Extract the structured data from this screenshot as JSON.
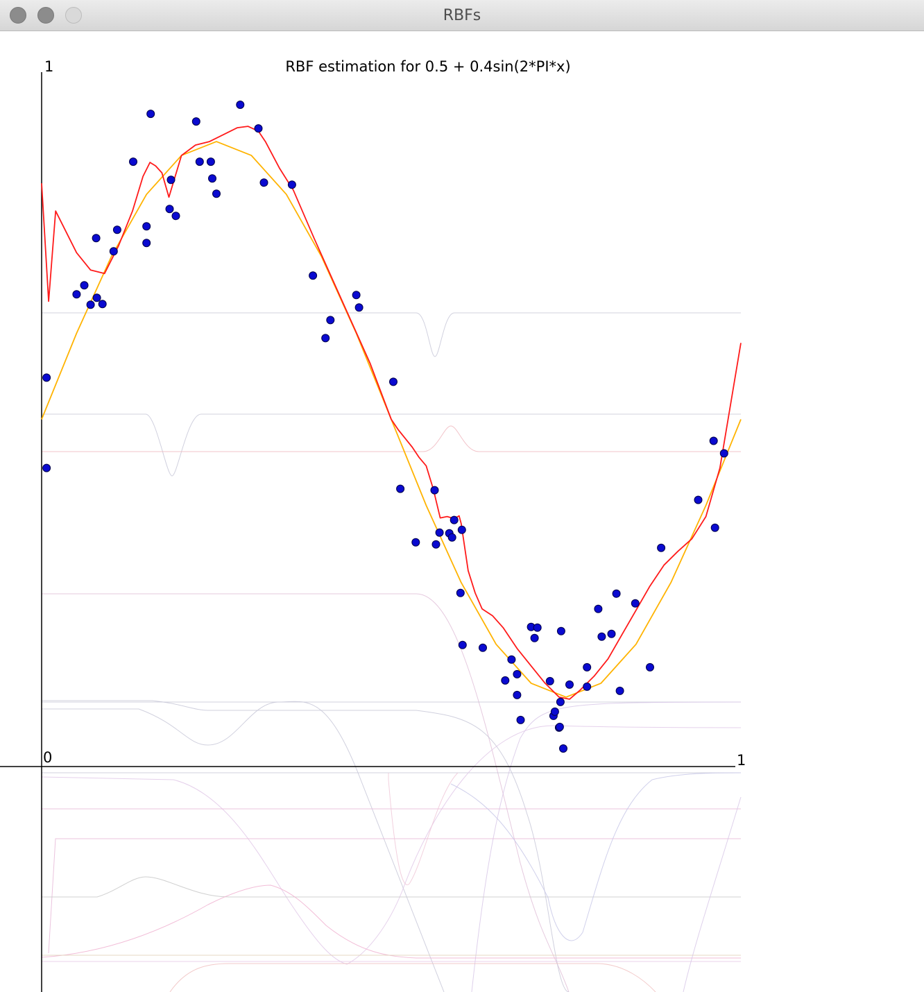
{
  "window": {
    "title": "RBFs"
  },
  "chart_data": {
    "type": "scatter",
    "title": "RBF estimation for 0.5 + 0.4sin(2*PI*x)",
    "xlim": [
      0,
      1
    ],
    "ylim": [
      0,
      1
    ],
    "tick_labels": {
      "y_top": "1",
      "origin": "0",
      "x_right": "1"
    },
    "colors": {
      "points": "#0a0ad0",
      "target": "#ffb300",
      "estimate": "#ff1a1a",
      "axes": "#000000"
    },
    "series": [
      {
        "kind": "points",
        "points": [
          [
            0.007,
            0.56
          ],
          [
            0.007,
            0.43
          ],
          [
            0.05,
            0.68
          ],
          [
            0.061,
            0.693
          ],
          [
            0.07,
            0.665
          ],
          [
            0.078,
            0.761
          ],
          [
            0.079,
            0.675
          ],
          [
            0.087,
            0.666
          ],
          [
            0.103,
            0.742
          ],
          [
            0.108,
            0.773
          ],
          [
            0.131,
            0.871
          ],
          [
            0.15,
            0.754
          ],
          [
            0.15,
            0.778
          ],
          [
            0.156,
            0.94
          ],
          [
            0.183,
            0.803
          ],
          [
            0.185,
            0.845
          ],
          [
            0.192,
            0.793
          ],
          [
            0.221,
            0.929
          ],
          [
            0.226,
            0.871
          ],
          [
            0.242,
            0.871
          ],
          [
            0.244,
            0.847
          ],
          [
            0.25,
            0.825
          ],
          [
            0.284,
            0.953
          ],
          [
            0.31,
            0.919
          ],
          [
            0.318,
            0.841
          ],
          [
            0.358,
            0.838
          ],
          [
            0.388,
            0.707
          ],
          [
            0.406,
            0.617
          ],
          [
            0.413,
            0.643
          ],
          [
            0.45,
            0.679
          ],
          [
            0.454,
            0.661
          ],
          [
            0.503,
            0.554
          ],
          [
            0.513,
            0.4
          ],
          [
            0.535,
            0.323
          ],
          [
            0.562,
            0.398
          ],
          [
            0.564,
            0.32
          ],
          [
            0.569,
            0.337
          ],
          [
            0.583,
            0.336
          ],
          [
            0.587,
            0.33
          ],
          [
            0.59,
            0.355
          ],
          [
            0.601,
            0.341
          ],
          [
            0.599,
            0.25
          ],
          [
            0.602,
            0.175
          ],
          [
            0.631,
            0.171
          ],
          [
            0.672,
            0.154
          ],
          [
            0.663,
            0.124
          ],
          [
            0.68,
            0.133
          ],
          [
            0.68,
            0.103
          ],
          [
            0.685,
            0.067
          ],
          [
            0.705,
            0.185
          ],
          [
            0.7,
            0.201
          ],
          [
            0.709,
            0.2
          ],
          [
            0.727,
            0.123
          ],
          [
            0.732,
            0.073
          ],
          [
            0.734,
            0.079
          ],
          [
            0.742,
            0.093
          ],
          [
            0.74,
            0.056
          ],
          [
            0.743,
            0.195
          ],
          [
            0.741,
            0.057
          ],
          [
            0.746,
            0.026
          ],
          [
            0.755,
            0.118
          ],
          [
            0.78,
            0.143
          ],
          [
            0.78,
            0.115
          ],
          [
            0.796,
            0.227
          ],
          [
            0.801,
            0.187
          ],
          [
            0.815,
            0.191
          ],
          [
            0.822,
            0.249
          ],
          [
            0.827,
            0.109
          ],
          [
            0.849,
            0.235
          ],
          [
            0.87,
            0.143
          ],
          [
            0.886,
            0.315
          ],
          [
            0.939,
            0.384
          ],
          [
            0.963,
            0.344
          ],
          [
            0.961,
            0.469
          ],
          [
            0.976,
            0.451
          ]
        ]
      },
      {
        "kind": "curve",
        "role": "target",
        "points": [
          [
            0.0,
            0.5
          ],
          [
            0.05,
            0.624
          ],
          [
            0.1,
            0.735
          ],
          [
            0.15,
            0.824
          ],
          [
            0.2,
            0.88
          ],
          [
            0.25,
            0.9
          ],
          [
            0.3,
            0.88
          ],
          [
            0.35,
            0.824
          ],
          [
            0.4,
            0.735
          ],
          [
            0.45,
            0.624
          ],
          [
            0.5,
            0.5
          ],
          [
            0.55,
            0.376
          ],
          [
            0.6,
            0.265
          ],
          [
            0.65,
            0.176
          ],
          [
            0.7,
            0.12
          ],
          [
            0.75,
            0.1
          ],
          [
            0.8,
            0.12
          ],
          [
            0.85,
            0.176
          ],
          [
            0.9,
            0.265
          ],
          [
            0.95,
            0.376
          ],
          [
            1.0,
            0.5
          ]
        ]
      },
      {
        "kind": "curve",
        "role": "estimate",
        "points": [
          [
            0.0,
            0.84
          ],
          [
            0.01,
            0.67
          ],
          [
            0.02,
            0.8
          ],
          [
            0.05,
            0.74
          ],
          [
            0.07,
            0.715
          ],
          [
            0.09,
            0.71
          ],
          [
            0.11,
            0.75
          ],
          [
            0.13,
            0.8
          ],
          [
            0.145,
            0.85
          ],
          [
            0.155,
            0.87
          ],
          [
            0.163,
            0.865
          ],
          [
            0.172,
            0.855
          ],
          [
            0.182,
            0.82
          ],
          [
            0.2,
            0.88
          ],
          [
            0.22,
            0.895
          ],
          [
            0.24,
            0.9
          ],
          [
            0.26,
            0.91
          ],
          [
            0.28,
            0.92
          ],
          [
            0.295,
            0.922
          ],
          [
            0.31,
            0.915
          ],
          [
            0.32,
            0.9
          ],
          [
            0.34,
            0.862
          ],
          [
            0.36,
            0.83
          ],
          [
            0.39,
            0.76
          ],
          [
            0.43,
            0.67
          ],
          [
            0.47,
            0.58
          ],
          [
            0.5,
            0.5
          ],
          [
            0.51,
            0.485
          ],
          [
            0.53,
            0.46
          ],
          [
            0.54,
            0.445
          ],
          [
            0.55,
            0.433
          ],
          [
            0.56,
            0.4
          ],
          [
            0.57,
            0.358
          ],
          [
            0.58,
            0.36
          ],
          [
            0.59,
            0.357
          ],
          [
            0.597,
            0.361
          ],
          [
            0.6,
            0.35
          ],
          [
            0.61,
            0.282
          ],
          [
            0.62,
            0.25
          ],
          [
            0.63,
            0.227
          ],
          [
            0.645,
            0.217
          ],
          [
            0.66,
            0.2
          ],
          [
            0.68,
            0.17
          ],
          [
            0.7,
            0.145
          ],
          [
            0.72,
            0.12
          ],
          [
            0.74,
            0.1
          ],
          [
            0.755,
            0.097
          ],
          [
            0.77,
            0.11
          ],
          [
            0.79,
            0.13
          ],
          [
            0.81,
            0.155
          ],
          [
            0.83,
            0.19
          ],
          [
            0.85,
            0.225
          ],
          [
            0.87,
            0.26
          ],
          [
            0.89,
            0.29
          ],
          [
            0.91,
            0.31
          ],
          [
            0.93,
            0.328
          ],
          [
            0.95,
            0.36
          ],
          [
            0.97,
            0.43
          ],
          [
            0.985,
            0.52
          ],
          [
            1.0,
            0.61
          ]
        ]
      }
    ]
  }
}
